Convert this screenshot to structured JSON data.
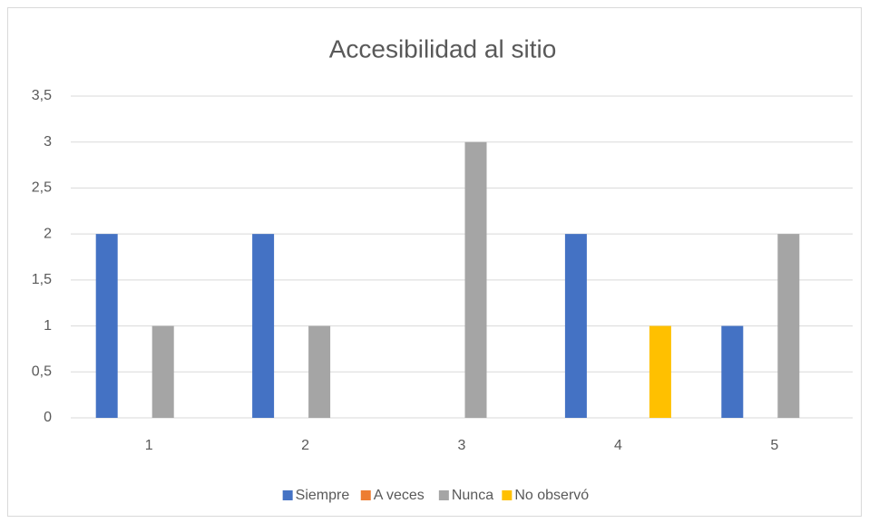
{
  "chart_data": {
    "type": "bar",
    "title": "Accesibilidad al sitio",
    "categories": [
      "1",
      "2",
      "3",
      "4",
      "5"
    ],
    "series": [
      {
        "name": "Siempre",
        "color": "#4472c4",
        "values": [
          2,
          2,
          0,
          2,
          1
        ]
      },
      {
        "name": "A veces",
        "color": "#ed7d31",
        "values": [
          0,
          0,
          0,
          0,
          0
        ]
      },
      {
        "name": "Nunca",
        "color": "#a5a5a5",
        "values": [
          1,
          1,
          3,
          0,
          2
        ]
      },
      {
        "name": "No observó",
        "color": "#ffc000",
        "values": [
          0,
          0,
          0,
          1,
          0
        ]
      }
    ],
    "ylim": [
      0,
      3.5
    ],
    "yticks": [
      0,
      {
        "value": 0.5,
        "label": "0,5"
      },
      1,
      {
        "value": 1.5,
        "label": "1,5"
      },
      2,
      {
        "value": 2.5,
        "label": "2,5"
      },
      3,
      {
        "value": 3.5,
        "label": "3,5"
      }
    ],
    "grid": true,
    "legend": "bottom"
  }
}
